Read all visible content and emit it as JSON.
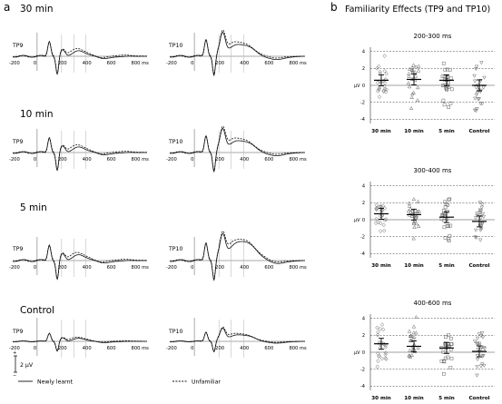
{
  "panel_a": {
    "letter": "a",
    "rows": [
      {
        "title": "30 min",
        "left_channel": "TP9",
        "right_channel": "TP10"
      },
      {
        "title": "10 min",
        "left_channel": "TP9",
        "right_channel": "TP10"
      },
      {
        "title": "5 min",
        "left_channel": "TP9",
        "right_channel": "TP10"
      },
      {
        "title": "Control",
        "left_channel": "TP9",
        "right_channel": "TP10"
      }
    ],
    "xticks": [
      "-200",
      "0",
      "200",
      "400",
      "600",
      "800 ms"
    ],
    "scale_label": "2 µV",
    "scale_plus": "+",
    "scale_minus": "−",
    "legend": {
      "solid": "Newly learnt",
      "dashed": "Unfamiliar"
    }
  },
  "panel_b": {
    "letter": "b",
    "title": "Familiarity Effects (TP9 and TP10)",
    "ylabel": "µV",
    "conditions": [
      "30 min",
      "10 min",
      "5 min",
      "Control"
    ],
    "yticks": [
      "4",
      "2",
      "0",
      "-2",
      "-4"
    ]
  },
  "chart_data": [
    {
      "type": "scatter",
      "title": "200-300 ms",
      "ylabel": "µV",
      "ylim": [
        -4.5,
        4.5
      ],
      "categories": [
        "30 min",
        "10 min",
        "5 min",
        "Control"
      ],
      "mean": [
        0.6,
        0.7,
        0.6,
        0.0
      ]
    },
    {
      "type": "scatter",
      "title": "300-400 ms",
      "ylabel": "µV",
      "ylim": [
        -4.5,
        4.5
      ],
      "categories": [
        "30 min",
        "10 min",
        "5 min",
        "Control"
      ],
      "mean": [
        0.7,
        0.6,
        0.3,
        -0.2
      ]
    },
    {
      "type": "scatter",
      "title": "400-600 ms",
      "ylabel": "µV",
      "ylim": [
        -4.5,
        4.5
      ],
      "categories": [
        "30 min",
        "10 min",
        "5 min",
        "Control"
      ],
      "mean": [
        1.0,
        0.7,
        0.5,
        0.1
      ]
    }
  ]
}
